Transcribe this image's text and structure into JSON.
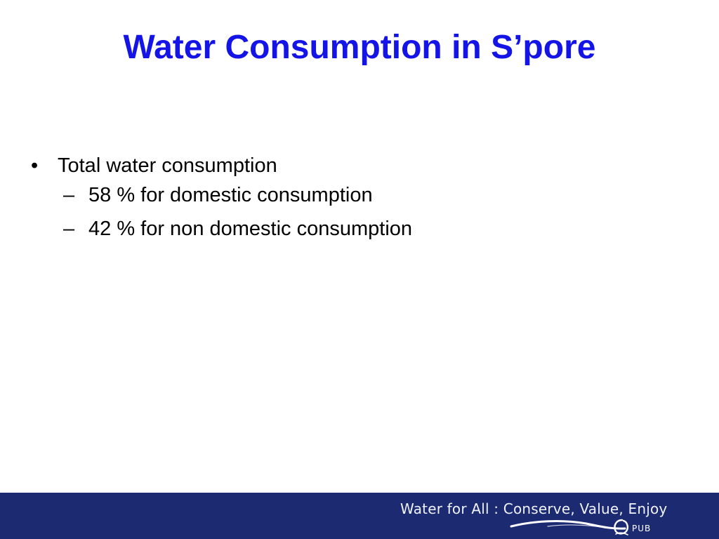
{
  "slide": {
    "title": "Water Consumption in S’pore",
    "bullets": [
      {
        "marker": "•",
        "text": "Total water consumption",
        "sub": [
          {
            "marker": "–",
            "text": "58 % for domestic consumption"
          },
          {
            "marker": "–",
            "text": "42 % for non domestic consumption"
          }
        ]
      }
    ]
  },
  "footer": {
    "tagline": "Water for All : Conserve, Value, Enjoy",
    "logo_text": "PUB",
    "bar_color": "#1c2a72",
    "swoosh_icon": "wave-swoosh-icon",
    "logo_icon": "pub-logo-icon"
  },
  "colors": {
    "title": "#1414e6",
    "body_text": "#000000",
    "background": "#ffffff"
  }
}
